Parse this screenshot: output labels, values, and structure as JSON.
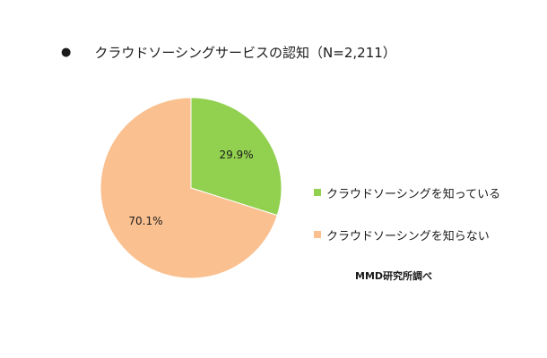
{
  "chart_data": {
    "type": "pie",
    "title": "クラウドソーシングサービスの認知（N=2,211）",
    "slices": [
      {
        "label": "クラウドソーシングを知っている",
        "value": 29.9,
        "display": "29.9%",
        "color": "#92d050"
      },
      {
        "label": "クラウドソーシングを知らない",
        "value": 70.1,
        "display": "70.1%",
        "color": "#fac090"
      }
    ],
    "legend_position": "right"
  },
  "source": "MMD研究所調べ"
}
